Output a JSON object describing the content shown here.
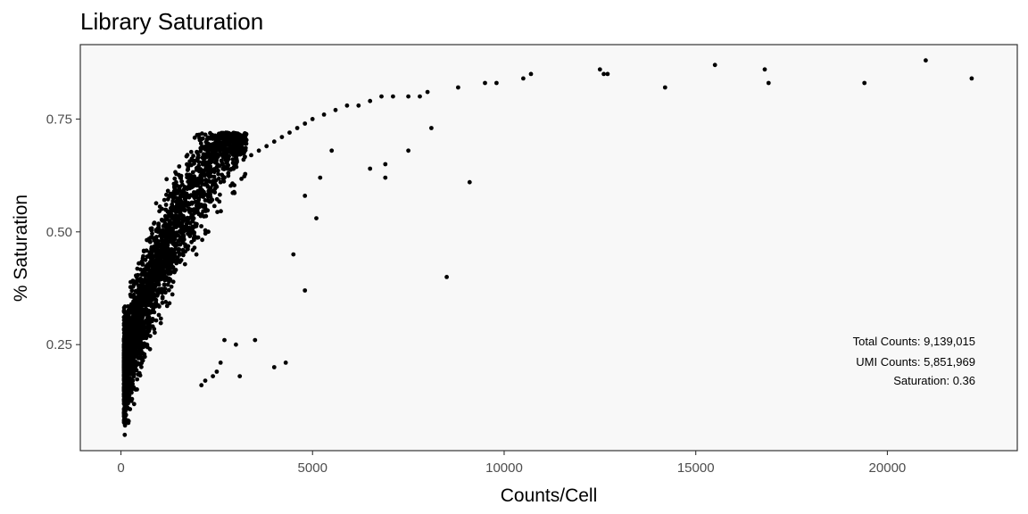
{
  "chart_data": {
    "type": "scatter",
    "title": "Library Saturation",
    "xlabel": "Counts/Cell",
    "ylabel": "% Saturation",
    "xlim": [
      -1060,
      23390
    ],
    "ylim": [
      0.015,
      0.915
    ],
    "xticks": [
      0,
      5000,
      10000,
      15000,
      20000
    ],
    "xtick_labels": [
      "0",
      "5000",
      "10000",
      "15000",
      "20000"
    ],
    "yticks": [
      0.25,
      0.5,
      0.75
    ],
    "ytick_labels": [
      "0.25",
      "0.50",
      "0.75"
    ],
    "grid": false,
    "panel_background": "#f8f8f8",
    "point_color": "#000000",
    "annotations": [
      "Total Counts: 9,139,015",
      "UMI Counts: 5,851,969",
      "Saturation: 0.36"
    ],
    "points": [
      [
        100,
        0.05
      ],
      [
        120,
        0.08
      ],
      [
        150,
        0.11
      ],
      [
        180,
        0.14
      ],
      [
        200,
        0.17
      ],
      [
        250,
        0.2
      ],
      [
        300,
        0.22
      ],
      [
        350,
        0.24
      ],
      [
        400,
        0.26
      ],
      [
        450,
        0.28
      ],
      [
        500,
        0.3
      ],
      [
        600,
        0.32
      ],
      [
        700,
        0.34
      ],
      [
        800,
        0.36
      ],
      [
        900,
        0.38
      ],
      [
        1000,
        0.4
      ],
      [
        1100,
        0.42
      ],
      [
        1200,
        0.43
      ],
      [
        1300,
        0.45
      ],
      [
        1400,
        0.46
      ],
      [
        1500,
        0.48
      ],
      [
        1600,
        0.49
      ],
      [
        1700,
        0.51
      ],
      [
        1800,
        0.52
      ],
      [
        1900,
        0.53
      ],
      [
        2000,
        0.55
      ],
      [
        2100,
        0.56
      ],
      [
        2200,
        0.57
      ],
      [
        2300,
        0.58
      ],
      [
        2400,
        0.59
      ],
      [
        2500,
        0.6
      ],
      [
        2600,
        0.61
      ],
      [
        2700,
        0.62
      ],
      [
        2800,
        0.63
      ],
      [
        2900,
        0.64
      ],
      [
        3000,
        0.65
      ],
      [
        3200,
        0.66
      ],
      [
        3400,
        0.67
      ],
      [
        3600,
        0.68
      ],
      [
        3800,
        0.69
      ],
      [
        4000,
        0.7
      ],
      [
        4200,
        0.71
      ],
      [
        4400,
        0.72
      ],
      [
        4600,
        0.73
      ],
      [
        4800,
        0.74
      ],
      [
        5000,
        0.75
      ],
      [
        5300,
        0.76
      ],
      [
        5600,
        0.77
      ],
      [
        5900,
        0.78
      ],
      [
        6200,
        0.78
      ],
      [
        6500,
        0.79
      ],
      [
        6800,
        0.8
      ],
      [
        7100,
        0.8
      ],
      [
        7500,
        0.8
      ],
      [
        7800,
        0.8
      ],
      [
        8000,
        0.81
      ],
      [
        8800,
        0.82
      ],
      [
        9500,
        0.83
      ],
      [
        9800,
        0.83
      ],
      [
        10500,
        0.84
      ],
      [
        10700,
        0.85
      ],
      [
        12500,
        0.86
      ],
      [
        12600,
        0.85
      ],
      [
        12700,
        0.85
      ],
      [
        14200,
        0.82
      ],
      [
        15500,
        0.87
      ],
      [
        16800,
        0.86
      ],
      [
        16900,
        0.83
      ],
      [
        19400,
        0.83
      ],
      [
        21000,
        0.88
      ],
      [
        22200,
        0.84
      ],
      [
        8500,
        0.4
      ],
      [
        9100,
        0.61
      ],
      [
        8100,
        0.73
      ],
      [
        7500,
        0.68
      ],
      [
        6900,
        0.62
      ],
      [
        6900,
        0.65
      ],
      [
        6500,
        0.64
      ],
      [
        5500,
        0.68
      ],
      [
        5200,
        0.62
      ],
      [
        5100,
        0.53
      ],
      [
        4800,
        0.37
      ],
      [
        4800,
        0.58
      ],
      [
        4500,
        0.45
      ],
      [
        4300,
        0.21
      ],
      [
        4000,
        0.2
      ],
      [
        3500,
        0.26
      ],
      [
        3100,
        0.18
      ],
      [
        3000,
        0.25
      ],
      [
        2700,
        0.26
      ],
      [
        2600,
        0.21
      ],
      [
        2500,
        0.19
      ],
      [
        2400,
        0.18
      ],
      [
        2200,
        0.17
      ],
      [
        2100,
        0.16
      ]
    ],
    "band_center_a": 0.235,
    "band_center_b": 0.0034,
    "band_spread": 0.035
  }
}
